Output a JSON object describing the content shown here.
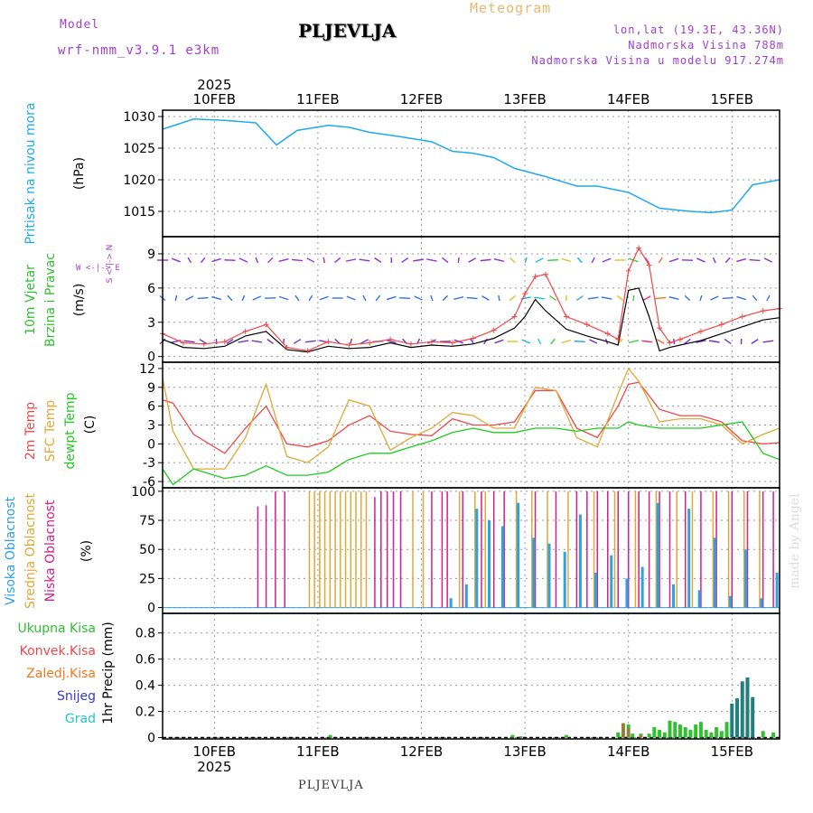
{
  "header": {
    "title": "PLJEVLJA",
    "meteogram_label": "Meteogram",
    "model_label": "Model",
    "model_name": "wrf-nmm_v3.9.1 e3km",
    "lonlat": "lon,lat (19.3E, 43.36N)",
    "elevation": "Nadmorska Visina 788m",
    "model_elevation": "Nadmorska Visina u modelu 917.274m",
    "year": "2025",
    "watermark": "made by Angel",
    "footer": "PLJEVLJA"
  },
  "colors": {
    "pressure": "#1eaaf0",
    "t2m": "#f04848",
    "sfc": "#e0a838",
    "dewpt": "#20cc20",
    "high_cloud": "#30a0e0",
    "mid_cloud": "#e0a838",
    "low_cloud": "#d0208a",
    "wind_gust": "#000000",
    "wind_speed": "#f04848",
    "total_precip": "#30c030",
    "conv_precip": "#f04848",
    "frz_precip": "#f07820",
    "snow": "#3838e0",
    "hail": "#20c8c8",
    "violet": "#a040d0"
  },
  "chart_data": [
    {
      "type": "line",
      "name": "pressure",
      "ylabel_left": "Pritisak na nivou mora",
      "ylabel_unit": "(hPa)",
      "ylim": [
        1011,
        1031
      ],
      "yticks": [
        "1030",
        "1025",
        "1020",
        "1015"
      ],
      "ytick_values": [
        1030,
        1025,
        1020,
        1015
      ],
      "x_days": [
        0,
        0.3,
        0.6,
        0.9,
        1.1,
        1.3,
        1.6,
        1.8,
        2.0,
        2.3,
        2.6,
        2.8,
        3.0,
        3.2,
        3.4,
        3.7,
        4.0,
        4.2,
        4.5,
        4.8,
        5.1,
        5.3,
        5.5,
        5.7,
        5.96
      ],
      "values": [
        1028,
        1029.6,
        1029.4,
        1029,
        1025.5,
        1027.8,
        1028.6,
        1028.3,
        1027.5,
        1026.8,
        1026,
        1024.5,
        1024.2,
        1023.5,
        1021.8,
        1020.5,
        1019,
        1019,
        1018,
        1015.5,
        1015,
        1014.8,
        1015.2,
        1019.2,
        1020
      ]
    },
    {
      "type": "line",
      "name": "wind",
      "ylabel_left": "10m Vjetar",
      "ylabel_left2": "Brzina i Pravac",
      "ylabel_unit": "(m/s)",
      "compass": "W <-|-> E",
      "compass2": "S <-|-> N",
      "ylim": [
        -0.5,
        10.5
      ],
      "yticks": [
        "9",
        "6",
        "3",
        "0"
      ],
      "ytick_values": [
        9,
        6,
        3,
        0
      ],
      "x_days": [
        0,
        0.2,
        0.4,
        0.6,
        0.8,
        1.0,
        1.2,
        1.4,
        1.6,
        1.8,
        2.0,
        2.2,
        2.4,
        2.6,
        2.8,
        3.0,
        3.2,
        3.4,
        3.5,
        3.6,
        3.7,
        3.9,
        4.1,
        4.3,
        4.4,
        4.5,
        4.6,
        4.7,
        4.8,
        4.9,
        5.0,
        5.2,
        5.4,
        5.6,
        5.8,
        5.96
      ],
      "series": [
        {
          "name": "speed",
          "values": [
            2,
            1.2,
            1.1,
            1.3,
            2.2,
            2.8,
            0.8,
            0.5,
            1.3,
            1.0,
            1.2,
            1.5,
            1.1,
            1.3,
            1.2,
            1.6,
            2.3,
            3.5,
            5.5,
            7.0,
            7.2,
            3.5,
            2.8,
            2.0,
            1.5,
            7.5,
            9.5,
            8,
            2.5,
            1.2,
            1.5,
            2.2,
            2.8,
            3.5,
            4.0,
            4.2
          ]
        },
        {
          "name": "gust",
          "values": [
            1.5,
            0.8,
            0.7,
            0.9,
            1.8,
            2.2,
            0.6,
            0.4,
            0.9,
            0.7,
            0.8,
            1.2,
            0.8,
            1.0,
            0.9,
            1.1,
            1.6,
            2.5,
            3.5,
            5.0,
            4.0,
            2.4,
            1.8,
            1.3,
            1.0,
            5.8,
            6.0,
            3.5,
            0.5,
            0.8,
            1.0,
            1.4,
            2.0,
            2.6,
            3.2,
            3.4
          ]
        }
      ]
    },
    {
      "type": "line",
      "name": "temperature",
      "ylabel_left": "2m Temp",
      "ylabel_left2": "SFC Temp",
      "ylabel_left3": "dewpt Temp",
      "ylabel_unit": "(C)",
      "ylim": [
        -7,
        13
      ],
      "yticks": [
        "12",
        "9",
        "6",
        "3",
        "0",
        "-3",
        "-6"
      ],
      "ytick_values": [
        12,
        9,
        6,
        3,
        0,
        -3,
        -6
      ],
      "x_days": [
        0,
        0.1,
        0.3,
        0.6,
        0.8,
        1.0,
        1.2,
        1.4,
        1.6,
        1.8,
        2.0,
        2.2,
        2.4,
        2.6,
        2.8,
        3.0,
        3.2,
        3.4,
        3.6,
        3.8,
        4.0,
        4.2,
        4.4,
        4.5,
        4.6,
        4.8,
        5.0,
        5.2,
        5.4,
        5.6,
        5.8,
        5.96
      ],
      "series": [
        {
          "name": "t2m",
          "values": [
            7,
            6.5,
            1.5,
            -1.5,
            2.5,
            6,
            0,
            -0.5,
            0.5,
            3,
            4.5,
            2,
            1.5,
            1.3,
            4,
            3,
            3,
            3.5,
            8.5,
            8.5,
            2.5,
            1,
            6,
            9.5,
            9.8,
            5.5,
            4.5,
            4.5,
            3.5,
            0.5,
            0,
            0.2
          ]
        },
        {
          "name": "sfc",
          "values": [
            10.5,
            2,
            -4,
            -4,
            1,
            9.5,
            -2,
            -3,
            -0.5,
            7,
            6,
            -1,
            1,
            2.5,
            5,
            4.5,
            2.5,
            2.5,
            9,
            8.5,
            1,
            -0.5,
            8,
            12,
            10,
            3.5,
            4,
            4,
            3,
            0,
            1.5,
            2.5
          ]
        },
        {
          "name": "dewpt",
          "values": [
            -4,
            -6.5,
            -4,
            -5.5,
            -5,
            -3.5,
            -5,
            -5,
            -4.5,
            -2.5,
            -1.5,
            -1.5,
            -0.5,
            0.5,
            1.8,
            2.5,
            1.8,
            1.8,
            2.5,
            2.5,
            2,
            2.5,
            2.5,
            3.5,
            3,
            2.5,
            2.5,
            2.5,
            3,
            3.5,
            -1.5,
            -2.5
          ]
        }
      ]
    },
    {
      "type": "bar",
      "name": "cloud",
      "ylabel_left": "Visoka Oblacnost",
      "ylabel_left2": "Srednja Oblacnost",
      "ylabel_left3": "Niska Oblacnost",
      "ylabel_unit": "(%)",
      "ylim": [
        -5,
        103
      ],
      "yticks": [
        "100",
        "75",
        "50",
        "25",
        "0"
      ],
      "ytick_values": [
        100,
        75,
        50,
        25,
        0
      ],
      "series": [
        {
          "name": "low",
          "x_days": [
            0.92,
            1.0,
            1.09,
            1.18,
            2.05,
            2.11,
            2.17,
            2.23,
            2.3,
            2.6,
            2.7,
            2.75,
            2.9,
            3.08,
            3.2,
            3.3,
            3.6,
            3.8,
            4.0,
            4.1,
            4.2,
            4.3,
            4.4,
            4.5,
            4.6,
            4.7,
            4.8,
            4.9,
            5.05,
            5.2,
            5.35,
            5.5,
            5.65,
            5.8,
            5.9
          ],
          "values": [
            87,
            88,
            100,
            100,
            95,
            100,
            100,
            100,
            100,
            100,
            100,
            100,
            100,
            100,
            100,
            100,
            100,
            100,
            100,
            100,
            100,
            100,
            100,
            100,
            100,
            100,
            100,
            100,
            100,
            100,
            100,
            100,
            100,
            100,
            100
          ]
        },
        {
          "name": "mid",
          "x_days": [
            1.4,
            1.45,
            1.5,
            1.55,
            1.6,
            1.65,
            1.7,
            1.75,
            1.8,
            1.85,
            1.9,
            1.95,
            2.4,
            2.5,
            2.85,
            3.0,
            3.1,
            3.4,
            3.55,
            3.7,
            3.9,
            4.15,
            4.35,
            4.55,
            4.75,
            4.95,
            5.1,
            5.3,
            5.45,
            5.6,
            5.75
          ],
          "values": [
            100,
            100,
            100,
            100,
            100,
            100,
            100,
            100,
            100,
            100,
            100,
            100,
            100,
            100,
            100,
            100,
            100,
            100,
            100,
            100,
            100,
            100,
            100,
            100,
            100,
            100,
            100,
            100,
            100,
            100,
            100
          ]
        },
        {
          "name": "high",
          "x_days": [
            2.75,
            2.9,
            3.0,
            3.12,
            3.25,
            3.4,
            3.55,
            3.7,
            3.85,
            4.0,
            4.15,
            4.3,
            4.45,
            4.6,
            4.75,
            4.9,
            5.05,
            5.15,
            5.3,
            5.45,
            5.6,
            5.75,
            5.9
          ],
          "values": [
            8,
            20,
            85,
            75,
            70,
            90,
            60,
            55,
            48,
            80,
            30,
            45,
            25,
            35,
            90,
            20,
            85,
            15,
            60,
            10,
            50,
            8,
            30
          ]
        }
      ]
    },
    {
      "type": "bar",
      "name": "precipitation",
      "legend": [
        "Ukupna Kisa",
        "Konvek.Kisa",
        "Zaledj.Kisa",
        "Snijeg",
        "Grad"
      ],
      "ylabel_unit": "1hr Precip (mm)",
      "ylim": [
        -0.01,
        0.95
      ],
      "yticks": [
        "0.8",
        "0.6",
        "0.4",
        "0.2",
        "0"
      ],
      "ytick_values": [
        0.8,
        0.6,
        0.4,
        0.2,
        0
      ],
      "x_days": [
        1.62,
        3.38,
        3.46,
        3.9,
        4.4,
        4.45,
        4.5,
        4.54,
        4.62,
        4.7,
        4.75,
        4.8,
        4.85,
        4.9,
        4.95,
        5.0,
        5.05,
        5.1,
        5.15,
        5.2,
        5.25,
        5.3,
        5.35,
        5.4,
        5.45,
        5.5,
        5.55,
        5.6,
        5.65,
        5.7,
        5.8,
        5.9
      ],
      "total": [
        0.02,
        0.02,
        0.01,
        0.02,
        0.04,
        0.11,
        0.1,
        0.03,
        0.03,
        0.03,
        0.08,
        0.06,
        0.04,
        0.13,
        0.12,
        0.1,
        0.08,
        0.06,
        0.1,
        0.12,
        0.06,
        0.04,
        0.08,
        0.05,
        0.12,
        0.26,
        0.3,
        0.43,
        0.46,
        0.31,
        0.05,
        0.04
      ],
      "conv": [
        0,
        0,
        0,
        0,
        0,
        0.11,
        0.07,
        0,
        0.02,
        0,
        0,
        0,
        0,
        0,
        0,
        0,
        0,
        0,
        0,
        0,
        0,
        0,
        0,
        0,
        0,
        0,
        0,
        0,
        0,
        0,
        0,
        0
      ]
    }
  ],
  "x_axis": {
    "day_labels": [
      "10FEB",
      "11FEB",
      "12FEB",
      "13FEB",
      "14FEB",
      "15FEB"
    ],
    "day_offsets": [
      0.5,
      1.5,
      2.5,
      3.5,
      4.5,
      5.5
    ]
  }
}
